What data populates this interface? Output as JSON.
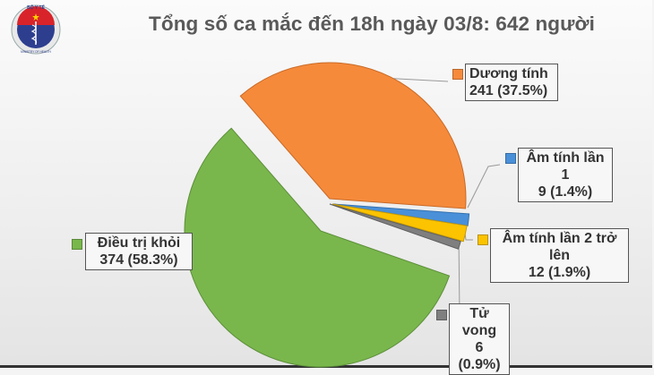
{
  "logo": {
    "top_text": "BỘ Y TẾ",
    "bottom_text": "MINISTRY OF HEALTH"
  },
  "header": {
    "title": "Tổng số ca mắc đến 18h ngày 03/8: 642 người"
  },
  "labels": {
    "duong_tinh": {
      "name": "Dương tính",
      "value": "241 (37.5%)",
      "color": "#f68a3b"
    },
    "am_tinh_1": {
      "name": "Âm tính lần 1",
      "value": "9 (1.4%)",
      "color": "#4a90d9"
    },
    "am_tinh_2": {
      "name": "Âm tính lần 2 trở lên",
      "value": "12 (1.9%)",
      "color": "#fbc300"
    },
    "tu_vong": {
      "name": "Tử vong",
      "value": "6 (0.9%)",
      "color": "#7f7f7f"
    },
    "dieu_tri_khoi": {
      "name": "Điều trị khỏi",
      "value": "374 (58.3%)",
      "color": "#79b74c"
    }
  },
  "chart_data": {
    "type": "pie",
    "title": "Tổng số ca mắc đến 18h ngày 03/8: 642 người",
    "total": 642,
    "categories": [
      "Dương tính",
      "Âm tính lần 1",
      "Âm tính lần 2 trở lên",
      "Tử vong",
      "Điều trị khỏi"
    ],
    "values": [
      241,
      9,
      12,
      6,
      374
    ],
    "percentages": [
      37.5,
      1.4,
      1.9,
      0.9,
      58.3
    ],
    "colors": [
      "#f68a3b",
      "#4a90d9",
      "#fbc300",
      "#7f7f7f",
      "#79b74c"
    ],
    "exploded": [
      "Dương tính",
      "Âm tính lần 1",
      "Âm tính lần 2 trở lên",
      "Tử vong"
    ],
    "legend_position": "data labels with leader lines"
  }
}
